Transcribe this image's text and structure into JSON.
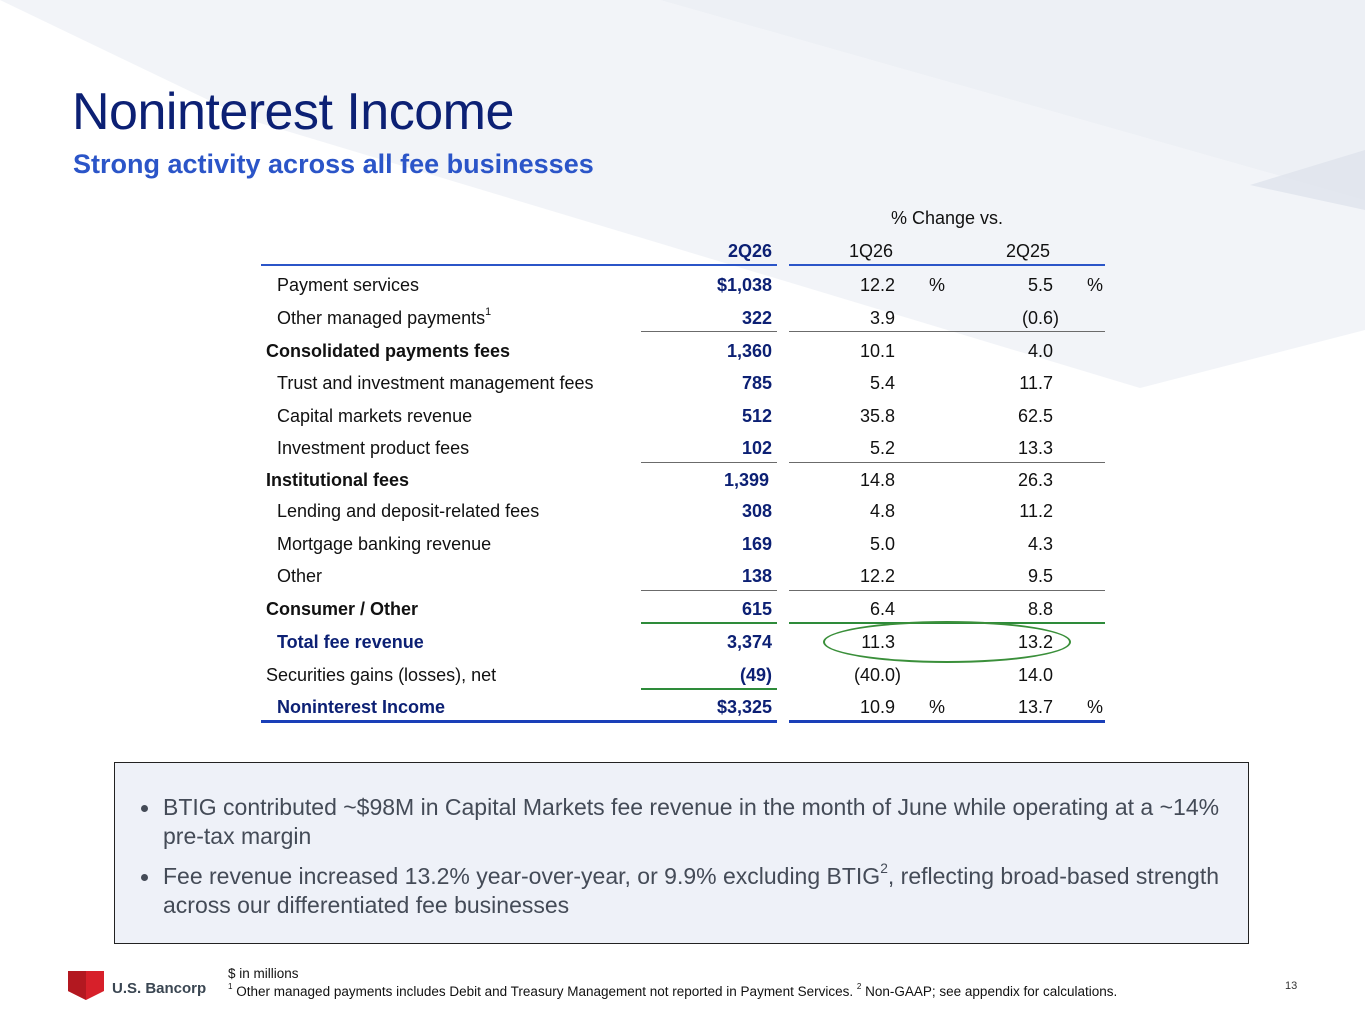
{
  "header": {
    "title": "Noninterest Income",
    "subtitle": "Strong activity across all fee businesses"
  },
  "table": {
    "change_header": "% Change vs.",
    "col_current": "2Q26",
    "col_prior_q": "1Q26",
    "col_prior_y": "2Q25",
    "percent_sign": "%",
    "rows": [
      {
        "label": "Payment services",
        "v2q26": "$1,038",
        "v1q26": "12.2",
        "v2q25": "5.5"
      },
      {
        "label": "Other managed payments",
        "footnote": "1",
        "v2q26": "322",
        "v1q26": "3.9",
        "v2q25": "(0.6)"
      },
      {
        "label": "Consolidated payments fees",
        "v2q26": "1,360",
        "v1q26": "10.1",
        "v2q25": "4.0"
      },
      {
        "label": "Trust and investment management fees",
        "v2q26": "785",
        "v1q26": "5.4",
        "v2q25": "11.7"
      },
      {
        "label": "Capital markets revenue",
        "v2q26": "512",
        "v1q26": "35.8",
        "v2q25": "62.5"
      },
      {
        "label": "Investment product fees",
        "v2q26": "102",
        "v1q26": "5.2",
        "v2q25": "13.3"
      },
      {
        "label": "Institutional fees",
        "v2q26": "1,399",
        "v1q26": "14.8",
        "v2q25": "26.3"
      },
      {
        "label": "Lending and deposit-related fees",
        "v2q26": "308",
        "v1q26": "4.8",
        "v2q25": "11.2"
      },
      {
        "label": "Mortgage banking revenue",
        "v2q26": "169",
        "v1q26": "5.0",
        "v2q25": "4.3"
      },
      {
        "label": "Other",
        "v2q26": "138",
        "v1q26": "12.2",
        "v2q25": "9.5"
      },
      {
        "label": "Consumer / Other",
        "v2q26": "615",
        "v1q26": "6.4",
        "v2q25": "8.8"
      },
      {
        "label": "Total fee revenue",
        "v2q26": "3,374",
        "v1q26": "11.3",
        "v2q25": "13.2"
      },
      {
        "label": "Securities gains (losses), net",
        "v2q26": "(49)",
        "v1q26": "(40.0)",
        "v2q25": "14.0"
      },
      {
        "label": "Noninterest Income",
        "v2q26": "$3,325",
        "v1q26": "10.9",
        "v2q25": "13.7"
      }
    ]
  },
  "callout": {
    "bullet1": "BTIG contributed ~$98M in Capital Markets fee revenue in the month of June while operating at a ~14% pre-tax margin",
    "bullet2_pre": "Fee revenue increased 13.2% year-over-year, or 9.9% excluding BTIG",
    "bullet2_sup": "2",
    "bullet2_post": ", reflecting broad-based strength across our differentiated fee businesses"
  },
  "footer": {
    "units": "$ in millions",
    "note1_sup": "1",
    "note1": " Other managed payments includes Debit and Treasury Management not reported in Payment Services. ",
    "note2_sup": "2",
    "note2": " Non-GAAP; see appendix for calculations."
  },
  "brand": {
    "name": "U.S. Bancorp",
    "logo_color": "#d7202a",
    "title_color": "#0c2074",
    "accent_color": "#2b55c8"
  },
  "page_number": "13"
}
